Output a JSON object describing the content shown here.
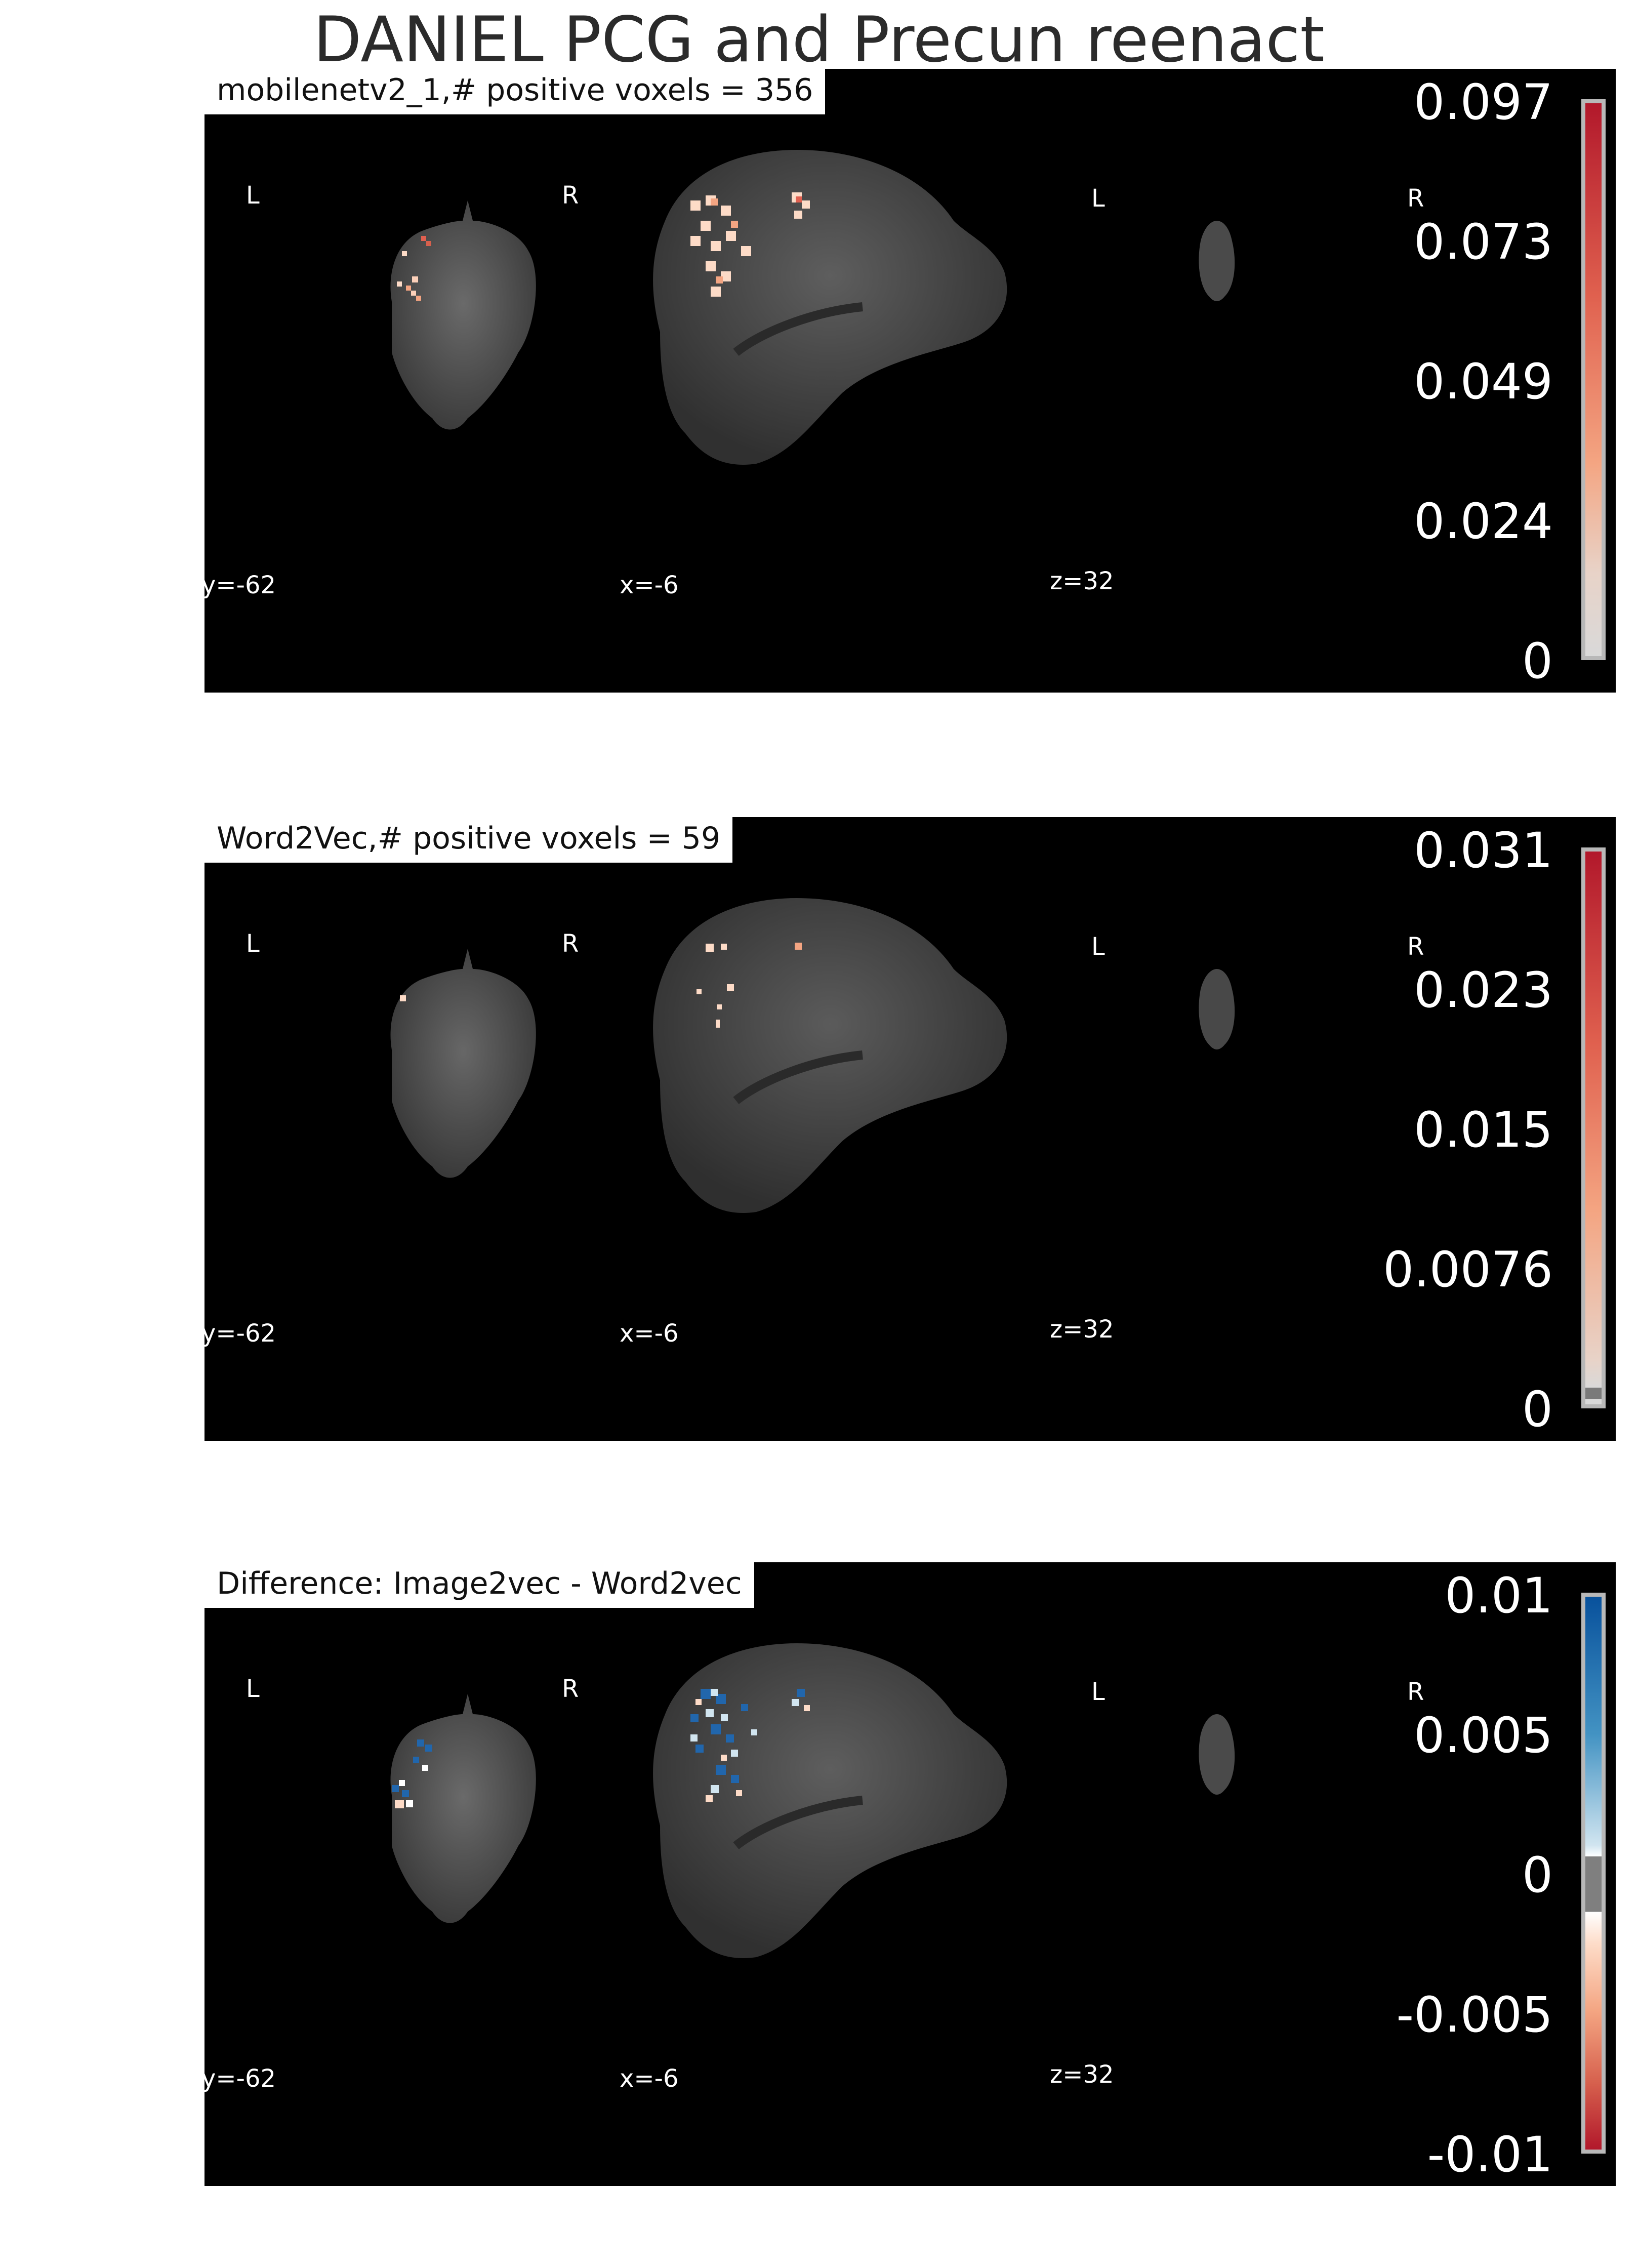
{
  "figure": {
    "title": "DANIEL PCG  and  Precun reenact"
  },
  "panels": [
    {
      "label": "mobilenetv2_1,# positive voxels = 356",
      "orient": {
        "left_a": "L",
        "right_a": "R",
        "left_b": "L",
        "right_b": "R"
      },
      "coords": {
        "y": "y=-62",
        "x": "x=-6",
        "z": "z=32"
      },
      "colorbar": {
        "ticks": [
          "0.097",
          "0.073",
          "0.049",
          "0.024",
          "0"
        ],
        "colors": {
          "top": "#b2182b",
          "mid": "#f4a582",
          "bottom": "#d9d9d9"
        }
      }
    },
    {
      "label": "Word2Vec,# positive voxels = 59",
      "orient": {
        "left_a": "L",
        "right_a": "R",
        "left_b": "L",
        "right_b": "R"
      },
      "coords": {
        "y": "y=-62",
        "x": "x=-6",
        "z": "z=32"
      },
      "colorbar": {
        "ticks": [
          "0.031",
          "0.023",
          "0.015",
          "0.0076",
          "0"
        ],
        "colors": {
          "top": "#b2182b",
          "mid": "#f4a582",
          "bottom": "#d9d9d9"
        }
      }
    },
    {
      "label": "Difference: Image2vec - Word2vec",
      "orient": {
        "left_a": "L",
        "right_a": "R",
        "left_b": "L",
        "right_b": "R"
      },
      "coords": {
        "y": "y=-62",
        "x": "x=-6",
        "z": "z=32"
      },
      "colorbar": {
        "ticks": [
          "0.01",
          "0.005",
          "0",
          "-0.005",
          "-0.01"
        ],
        "colors": {
          "top": "#08519c",
          "mid": "#d1e5f0",
          "bottom": "#b2182b"
        }
      }
    }
  ]
}
